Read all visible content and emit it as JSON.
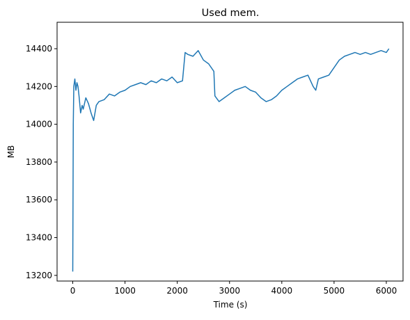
{
  "chart_data": {
    "type": "line",
    "title": "Used mem.",
    "xlabel": "Time (s)",
    "ylabel": "MB",
    "xlim": [
      -300,
      6320
    ],
    "ylim": [
      13170,
      14540
    ],
    "xticks": [
      0,
      1000,
      2000,
      3000,
      4000,
      5000,
      6000
    ],
    "yticks": [
      13200,
      13400,
      13600,
      13800,
      14000,
      14200,
      14400
    ],
    "grid": false,
    "legend": "none",
    "series": [
      {
        "color": "#1f77b4",
        "x": [
          0,
          10,
          20,
          40,
          60,
          80,
          100,
          120,
          150,
          180,
          200,
          250,
          300,
          350,
          400,
          450,
          500,
          600,
          700,
          800,
          900,
          1000,
          1100,
          1200,
          1300,
          1400,
          1500,
          1600,
          1700,
          1800,
          1900,
          2000,
          2100,
          2150,
          2200,
          2300,
          2400,
          2500,
          2600,
          2700,
          2720,
          2800,
          2900,
          3000,
          3100,
          3200,
          3300,
          3400,
          3500,
          3600,
          3700,
          3800,
          3900,
          4000,
          4100,
          4200,
          4300,
          4400,
          4500,
          4600,
          4650,
          4700,
          4800,
          4900,
          5000,
          5100,
          5200,
          5300,
          5400,
          5500,
          5600,
          5700,
          5800,
          5900,
          6000,
          6050
        ],
        "y": [
          13220,
          14000,
          14200,
          14240,
          14180,
          14220,
          14200,
          14150,
          14060,
          14100,
          14080,
          14140,
          14110,
          14060,
          14020,
          14100,
          14120,
          14130,
          14160,
          14150,
          14170,
          14180,
          14200,
          14210,
          14220,
          14210,
          14230,
          14220,
          14240,
          14230,
          14250,
          14220,
          14230,
          14380,
          14370,
          14360,
          14390,
          14340,
          14320,
          14280,
          14150,
          14120,
          14140,
          14160,
          14180,
          14190,
          14200,
          14180,
          14170,
          14140,
          14120,
          14130,
          14150,
          14180,
          14200,
          14220,
          14240,
          14250,
          14260,
          14200,
          14180,
          14240,
          14250,
          14260,
          14300,
          14340,
          14360,
          14370,
          14380,
          14370,
          14380,
          14370,
          14380,
          14390,
          14380,
          14400
        ]
      }
    ]
  }
}
